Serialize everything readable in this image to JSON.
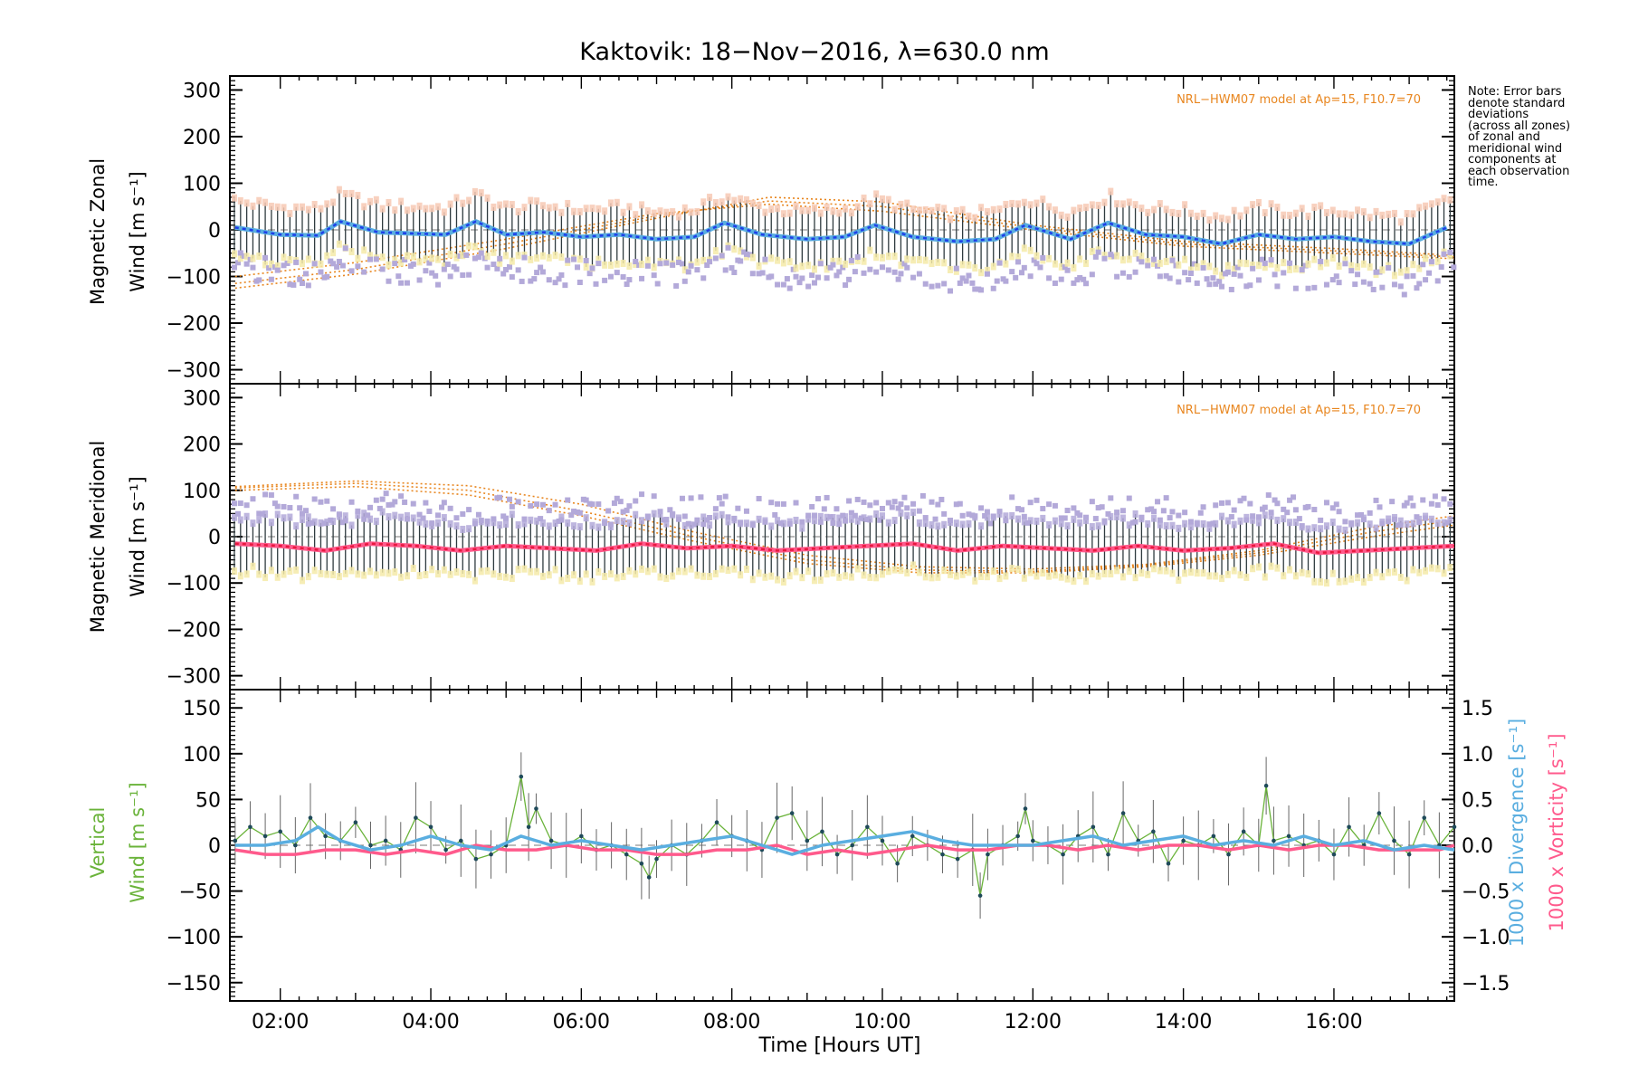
{
  "title": "Kaktovik: 18−Nov−2016, λ=630.0 nm",
  "note_lines": [
    "Note: Error bars",
    "denote standard",
    "deviations",
    "(across all zones)",
    "of zonal and",
    "meridional wind",
    "components at",
    "each observation",
    "time."
  ],
  "xlabel": "Time [Hours UT]",
  "x_ticks": [
    "02:00",
    "04:00",
    "06:00",
    "08:00",
    "10:00",
    "12:00",
    "14:00",
    "16:00"
  ],
  "colors": {
    "zonal_line": "#1f3fe8",
    "zonal_smooth": "#5aaee0",
    "meridional_line": "#e8193f",
    "meridional_smooth": "#ff5a8c",
    "vertical": "#6ab33a",
    "divergence": "#5aaee0",
    "vorticity": "#ff5a8c",
    "model": "#e8861f",
    "lavender": "#b3a9d9",
    "peach": "#f7c9b4",
    "pale_yellow": "#f5eaa8",
    "errorbar": "#2f3b3f"
  },
  "chart_data": [
    {
      "type": "line",
      "panel": "zonal",
      "ylabel_lines": [
        "Magnetic Zonal",
        "Wind [m s⁻¹]"
      ],
      "yticks": [
        "300",
        "200",
        "100",
        "0",
        "−100",
        "−200",
        "−300"
      ],
      "ylim": [
        -330,
        330
      ],
      "xlim": [
        1.33,
        17.6
      ],
      "annotation": "NRL−HWM07 model at Ap=15, F10.7=70",
      "series": [
        {
          "role": "smoothed wind",
          "x": [
            1.4,
            2.0,
            2.5,
            2.8,
            3.3,
            3.8,
            4.2,
            4.6,
            5.0,
            5.5,
            6.0,
            6.5,
            7.0,
            7.5,
            7.9,
            8.4,
            9.0,
            9.5,
            9.9,
            10.4,
            11.0,
            11.5,
            11.9,
            12.5,
            13.0,
            13.5,
            14.0,
            14.5,
            15.0,
            15.5,
            16.0,
            16.5,
            17.0,
            17.5
          ],
          "y": [
            5,
            -10,
            -12,
            18,
            -5,
            -8,
            -10,
            18,
            -10,
            -5,
            -15,
            -10,
            -20,
            -15,
            15,
            -10,
            -20,
            -15,
            10,
            -15,
            -25,
            -20,
            10,
            -20,
            15,
            -10,
            -15,
            -30,
            -10,
            -20,
            -15,
            -25,
            -30,
            5
          ]
        }
      ],
      "model_curves": [
        {
          "x": [
            1.4,
            3.0,
            5.0,
            7.0,
            8.5,
            10.0,
            12.0,
            14.0,
            16.0,
            17.6
          ],
          "y": [
            -125,
            -95,
            -40,
            25,
            70,
            60,
            10,
            -25,
            -40,
            -55
          ]
        },
        {
          "x": [
            1.4,
            3.0,
            5.0,
            7.0,
            8.5,
            10.0,
            12.0,
            14.0,
            16.0,
            17.6
          ],
          "y": [
            -115,
            -85,
            -30,
            30,
            62,
            50,
            5,
            -30,
            -45,
            -58
          ]
        },
        {
          "x": [
            1.4,
            3.0,
            5.0,
            7.0,
            8.5,
            10.0,
            12.0,
            14.0,
            16.0,
            17.6
          ],
          "y": [
            -100,
            -70,
            -20,
            35,
            55,
            40,
            0,
            -35,
            -50,
            -62
          ]
        }
      ]
    },
    {
      "type": "line",
      "panel": "meridional",
      "ylabel_lines": [
        "Magnetic Meridional",
        "Wind [m s⁻¹]"
      ],
      "yticks": [
        "300",
        "200",
        "100",
        "0",
        "−100",
        "−200",
        "−300"
      ],
      "ylim": [
        -330,
        330
      ],
      "xlim": [
        1.33,
        17.6
      ],
      "annotation": "NRL−HWM07 model at Ap=15, F10.7=70",
      "series": [
        {
          "role": "smoothed wind",
          "x": [
            1.4,
            2.0,
            2.6,
            3.2,
            3.8,
            4.4,
            5.0,
            5.6,
            6.2,
            6.8,
            7.4,
            8.0,
            8.6,
            9.2,
            9.8,
            10.4,
            11.0,
            11.6,
            12.2,
            12.8,
            13.4,
            14.0,
            14.6,
            15.2,
            15.8,
            16.4,
            17.0,
            17.6
          ],
          "y": [
            -15,
            -20,
            -30,
            -15,
            -20,
            -30,
            -20,
            -25,
            -30,
            -15,
            -25,
            -20,
            -30,
            -25,
            -20,
            -15,
            -30,
            -20,
            -25,
            -30,
            -20,
            -30,
            -25,
            -15,
            -35,
            -30,
            -25,
            -20
          ]
        }
      ],
      "model_curves": [
        {
          "x": [
            1.4,
            3.0,
            4.5,
            6.0,
            7.5,
            9.0,
            10.5,
            12.0,
            13.5,
            15.0,
            16.5,
            17.6
          ],
          "y": [
            108,
            120,
            110,
            70,
            10,
            -40,
            -65,
            -70,
            -60,
            -30,
            20,
            45
          ]
        },
        {
          "x": [
            1.4,
            3.0,
            4.5,
            6.0,
            7.5,
            9.0,
            10.5,
            12.0,
            13.5,
            15.0,
            16.5,
            17.6
          ],
          "y": [
            105,
            115,
            100,
            55,
            0,
            -50,
            -72,
            -75,
            -62,
            -35,
            10,
            35
          ]
        },
        {
          "x": [
            1.4,
            3.0,
            4.5,
            6.0,
            7.5,
            9.0,
            10.5,
            12.0,
            13.5,
            15.0,
            16.5,
            17.6
          ],
          "y": [
            100,
            108,
            90,
            45,
            -10,
            -58,
            -78,
            -78,
            -65,
            -40,
            0,
            25
          ]
        }
      ]
    },
    {
      "type": "line",
      "panel": "vertical",
      "ylabel_lines": [
        "Vertical",
        "Wind [m s⁻¹]"
      ],
      "ylabel_right_lines": [
        "1000 x Divergence [s⁻¹]",
        "1000 x Vorticity [s⁻¹]"
      ],
      "yticks": [
        "150",
        "100",
        "50",
        "0",
        "−50",
        "−100",
        "−150"
      ],
      "yticks_right": [
        "1.5",
        "1.0",
        "0.5",
        "0.0",
        "−0.5",
        "−1.0",
        "−1.5"
      ],
      "ylim": [
        -170,
        170
      ],
      "ylim_right": [
        -1.7,
        1.7
      ],
      "xlim": [
        1.33,
        17.6
      ],
      "series": [
        {
          "name": "1000 x Divergence",
          "x": [
            1.4,
            1.8,
            2.2,
            2.5,
            2.8,
            3.2,
            3.6,
            4.0,
            4.4,
            4.8,
            5.2,
            5.6,
            6.0,
            6.4,
            6.8,
            7.2,
            7.6,
            8.0,
            8.4,
            8.8,
            9.2,
            9.6,
            10.0,
            10.4,
            10.8,
            11.2,
            11.6,
            12.0,
            12.4,
            12.8,
            13.2,
            13.6,
            14.0,
            14.4,
            14.8,
            15.2,
            15.6,
            16.0,
            16.4,
            16.8,
            17.2,
            17.6
          ],
          "y": [
            0.0,
            0.0,
            0.05,
            0.2,
            0.05,
            -0.05,
            0.0,
            0.1,
            0.0,
            -0.05,
            0.1,
            0.0,
            0.05,
            0.0,
            -0.05,
            0.0,
            0.05,
            0.1,
            0.0,
            -0.1,
            0.0,
            0.05,
            0.1,
            0.15,
            0.05,
            0.0,
            0.0,
            0.0,
            0.05,
            0.1,
            0.0,
            0.05,
            0.1,
            0.0,
            0.05,
            0.0,
            0.1,
            0.0,
            0.05,
            -0.05,
            0.0,
            -0.05
          ]
        },
        {
          "name": "1000 x Vorticity",
          "x": [
            1.4,
            1.8,
            2.2,
            2.6,
            3.0,
            3.4,
            3.8,
            4.2,
            4.6,
            5.0,
            5.4,
            5.8,
            6.2,
            6.6,
            7.0,
            7.4,
            7.8,
            8.2,
            8.6,
            9.0,
            9.4,
            9.8,
            10.2,
            10.6,
            11.0,
            11.4,
            11.8,
            12.2,
            12.6,
            13.0,
            13.4,
            13.8,
            14.2,
            14.6,
            15.0,
            15.4,
            15.8,
            16.2,
            16.6,
            17.0,
            17.4,
            17.6
          ],
          "y": [
            -0.05,
            -0.1,
            -0.1,
            -0.05,
            -0.05,
            -0.1,
            -0.05,
            -0.1,
            0.0,
            -0.05,
            -0.05,
            0.0,
            -0.05,
            -0.05,
            -0.1,
            -0.1,
            -0.05,
            -0.05,
            0.0,
            -0.1,
            -0.05,
            -0.1,
            -0.05,
            0.0,
            -0.05,
            -0.05,
            0.0,
            0.0,
            -0.05,
            0.0,
            -0.05,
            0.0,
            0.0,
            -0.05,
            0.0,
            -0.05,
            0.0,
            0.0,
            -0.05,
            -0.05,
            -0.05,
            0.0
          ]
        },
        {
          "name": "Vertical Wind",
          "x": [
            1.4,
            1.6,
            1.8,
            2.0,
            2.2,
            2.4,
            2.6,
            2.8,
            3.0,
            3.2,
            3.4,
            3.6,
            3.8,
            4.0,
            4.2,
            4.4,
            4.6,
            4.8,
            5.0,
            5.2,
            5.3,
            5.4,
            5.6,
            5.8,
            6.0,
            6.2,
            6.4,
            6.6,
            6.8,
            6.9,
            7.0,
            7.2,
            7.4,
            7.6,
            7.8,
            8.0,
            8.2,
            8.4,
            8.6,
            8.8,
            9.0,
            9.2,
            9.4,
            9.6,
            9.8,
            10.0,
            10.2,
            10.4,
            10.6,
            10.8,
            11.0,
            11.2,
            11.3,
            11.4,
            11.6,
            11.8,
            11.9,
            12.0,
            12.2,
            12.4,
            12.6,
            12.8,
            13.0,
            13.2,
            13.4,
            13.6,
            13.8,
            14.0,
            14.2,
            14.4,
            14.6,
            14.8,
            15.0,
            15.1,
            15.2,
            15.4,
            15.6,
            15.8,
            16.0,
            16.2,
            16.4,
            16.6,
            16.8,
            17.0,
            17.2,
            17.4,
            17.6
          ],
          "y": [
            5,
            20,
            10,
            15,
            0,
            30,
            10,
            5,
            25,
            0,
            5,
            -5,
            30,
            20,
            -5,
            5,
            -15,
            -10,
            0,
            75,
            20,
            40,
            5,
            0,
            10,
            -5,
            0,
            -10,
            -20,
            -35,
            -15,
            0,
            -10,
            5,
            25,
            10,
            5,
            -5,
            30,
            35,
            5,
            15,
            -10,
            0,
            20,
            5,
            -20,
            10,
            0,
            -10,
            -15,
            -5,
            -55,
            -10,
            0,
            10,
            40,
            5,
            0,
            -10,
            10,
            20,
            -10,
            35,
            5,
            15,
            -20,
            5,
            0,
            10,
            -10,
            15,
            0,
            65,
            5,
            10,
            0,
            5,
            -10,
            20,
            0,
            35,
            5,
            -10,
            30,
            0,
            20
          ]
        }
      ]
    }
  ]
}
